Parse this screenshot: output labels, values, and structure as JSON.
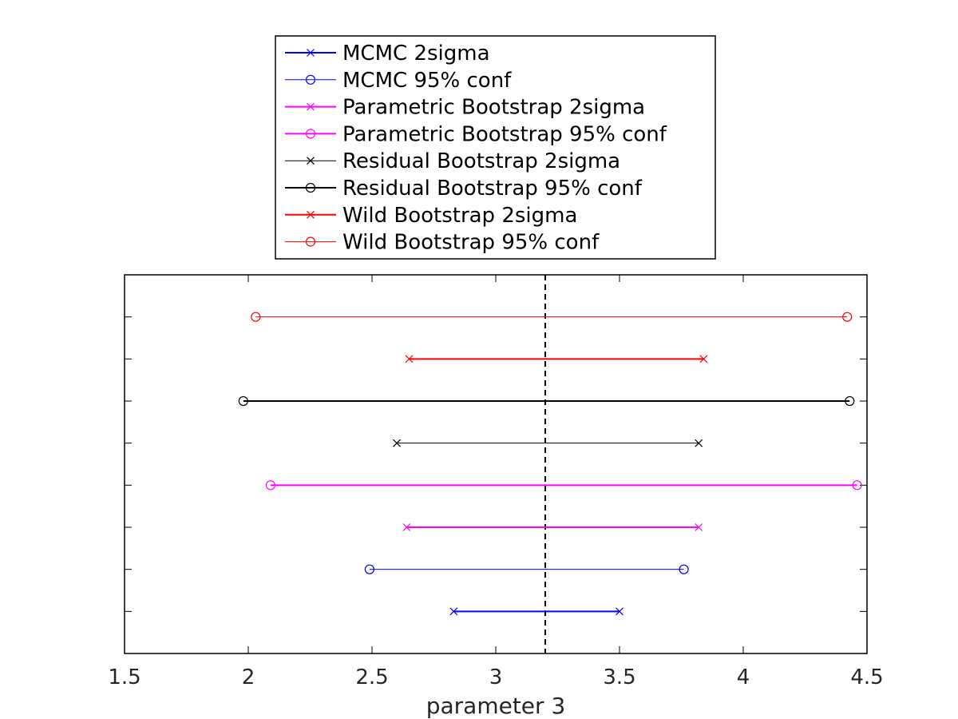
{
  "chart_data": {
    "type": "interval",
    "xlabel": "parameter 3",
    "ylabel": "",
    "xlim": [
      1.5,
      4.5
    ],
    "xticks": [
      "1.5",
      "2",
      "2.5",
      "3",
      "3.5",
      "4",
      "4.5"
    ],
    "xtick_values": [
      1.5,
      2,
      2.5,
      3,
      3.5,
      4,
      4.5
    ],
    "ylim": [
      0,
      9
    ],
    "yticks_labeled": false,
    "grid": false,
    "legend_position": "top-center (outside, above plot)",
    "reference_line": {
      "x": 3.2,
      "style": "dashed",
      "color": "#000000"
    },
    "series": [
      {
        "name": "MCMC 2sigma",
        "color": "#0000ff",
        "marker": "x",
        "row": 1,
        "low": 2.83,
        "high": 3.5,
        "line_width": 2
      },
      {
        "name": "MCMC 95% conf",
        "color": "#0000ff",
        "marker": "o",
        "row": 2,
        "low": 2.49,
        "high": 3.76,
        "line_width": 1
      },
      {
        "name": "Parametric Bootstrap 2sigma",
        "color": "#ff00ff",
        "marker": "x",
        "row": 3,
        "low": 2.64,
        "high": 3.82,
        "line_width": 2
      },
      {
        "name": "Parametric Bootstrap 95% conf",
        "color": "#ff00ff",
        "marker": "o",
        "row": 4,
        "low": 2.09,
        "high": 4.46,
        "line_width": 2
      },
      {
        "name": "Residual Bootstrap 2sigma",
        "color": "#000000",
        "marker": "x",
        "row": 5,
        "low": 2.6,
        "high": 3.82,
        "line_width": 1
      },
      {
        "name": "Residual Bootstrap 95% conf",
        "color": "#000000",
        "marker": "o",
        "row": 6,
        "low": 1.98,
        "high": 4.43,
        "line_width": 2
      },
      {
        "name": "Wild Bootstrap 2sigma",
        "color": "#ff0000",
        "marker": "x",
        "row": 7,
        "low": 2.65,
        "high": 3.84,
        "line_width": 2
      },
      {
        "name": "Wild Bootstrap 95% conf",
        "color": "#ff0000",
        "marker": "o",
        "row": 8,
        "low": 2.03,
        "high": 4.42,
        "line_width": 1
      }
    ]
  }
}
